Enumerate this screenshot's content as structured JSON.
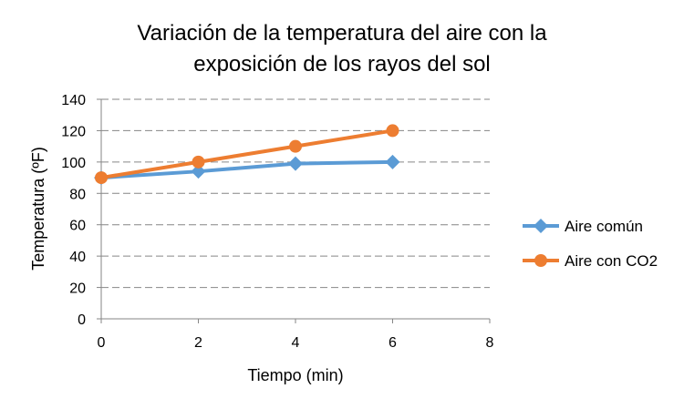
{
  "chart_data": {
    "type": "line",
    "title": "Variación de la temperatura del aire con la exposición de los rayos del sol",
    "title_lines": [
      "Variación de la temperatura del aire con la",
      "exposición de los rayos del sol"
    ],
    "xlabel": "Tiempo (min)",
    "ylabel": "Temperatura (ºF)",
    "xlim": [
      0,
      8
    ],
    "ylim": [
      0,
      140
    ],
    "xticks": [
      0,
      2,
      4,
      6,
      8
    ],
    "yticks": [
      0,
      20,
      40,
      60,
      80,
      100,
      120,
      140
    ],
    "grid": "horizontal dashed",
    "legend": "right",
    "series": [
      {
        "name": "Aire común",
        "color": "#5B9BD5",
        "marker": "diamond",
        "x": [
          0,
          2,
          4,
          6
        ],
        "y": [
          90,
          94,
          99,
          100
        ]
      },
      {
        "name": "Aire con CO2",
        "color": "#ED7D31",
        "marker": "circle",
        "x": [
          0,
          2,
          4,
          6
        ],
        "y": [
          90,
          100,
          110,
          120
        ]
      }
    ]
  }
}
